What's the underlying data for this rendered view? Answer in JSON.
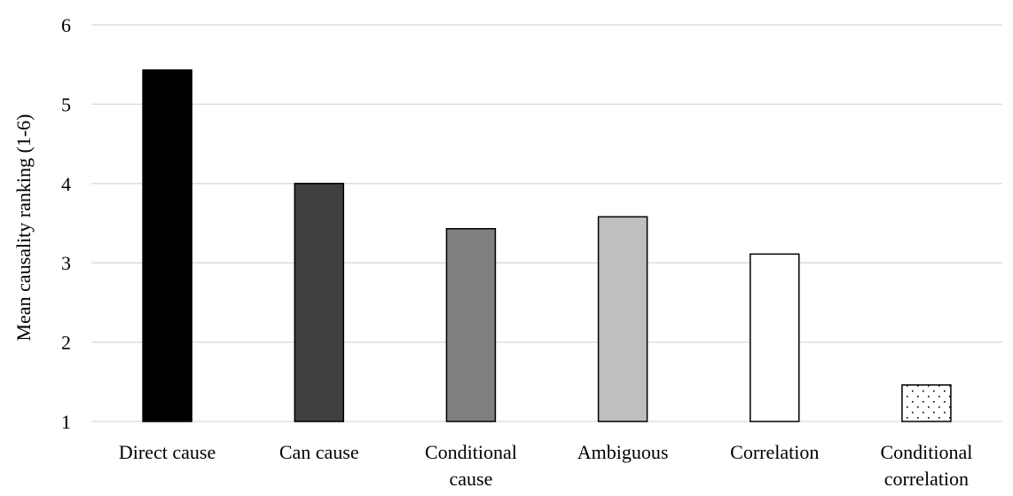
{
  "chart_data": {
    "type": "bar",
    "title": "",
    "xlabel": "",
    "ylabel": "Mean causality ranking (1-6)",
    "ylim": [
      1,
      6
    ],
    "yticks": [
      1,
      2,
      3,
      4,
      5,
      6
    ],
    "grid": "horizontal",
    "legend": "none",
    "categories": [
      [
        "Direct cause"
      ],
      [
        "Can cause"
      ],
      [
        "Conditional",
        "cause"
      ],
      [
        "Ambiguous"
      ],
      [
        "Correlation"
      ],
      [
        "Conditional",
        "correlation"
      ]
    ],
    "values": [
      5.43,
      4.0,
      3.43,
      3.58,
      3.11,
      1.46
    ],
    "bar_fills": [
      "#000000",
      "#404040",
      "#7f7f7f",
      "#bfbfbf",
      "#ffffff",
      "dotted"
    ],
    "bar_outline": "#000000",
    "grid_color": "#d9d9d9"
  }
}
